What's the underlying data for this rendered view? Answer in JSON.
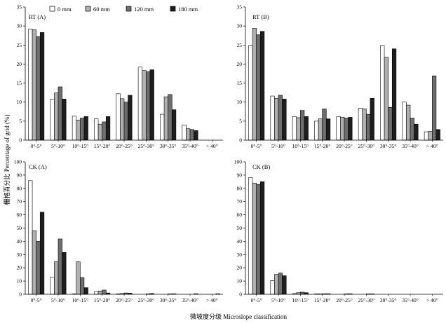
{
  "figure": {
    "ylabel": "栅格百分比 Percentage of grid (%)",
    "xlabel": "微坡度分级 Microslope classification"
  },
  "legend": [
    "0 mm",
    "60 mm",
    "120 mm",
    "180 mm"
  ],
  "colors": [
    "#ffffff",
    "#b0b0b0",
    "#6e6e6e",
    "#1e1e1e"
  ],
  "chart_data": [
    {
      "type": "bar",
      "title": "RT (A)",
      "categories": [
        "0°-5°",
        "5°-10°",
        "10°-15°",
        "15°-20°",
        "20°-25°",
        "25°-30°",
        "30°-35°",
        "35°-40°",
        "> 40°"
      ],
      "ylim": [
        0,
        35
      ],
      "yticks": [
        0,
        5,
        10,
        15,
        20,
        25,
        30,
        35
      ],
      "series": [
        {
          "name": "0 mm",
          "values": [
            29.2,
            10.8,
            6.3,
            5.6,
            12.2,
            19.2,
            6.8,
            4.0,
            0
          ]
        },
        {
          "name": "60 mm",
          "values": [
            29.0,
            12.4,
            5.3,
            4.2,
            10.9,
            18.3,
            11.4,
            3.0,
            0
          ]
        },
        {
          "name": "120 mm",
          "values": [
            27.2,
            14.0,
            5.8,
            4.8,
            10.0,
            18.0,
            12.0,
            2.8,
            0
          ]
        },
        {
          "name": "180 mm",
          "values": [
            28.3,
            10.8,
            6.2,
            6.2,
            11.8,
            18.5,
            8.0,
            2.5,
            0
          ]
        }
      ]
    },
    {
      "type": "bar",
      "title": "RT (B)",
      "categories": [
        "0°-5°",
        "5°-10°",
        "10°-15°",
        "15°-20°",
        "20°-25°",
        "25°-30°",
        "30°-35°",
        "35°-40°",
        "> 40°"
      ],
      "ylim": [
        0,
        35
      ],
      "yticks": [
        0,
        5,
        10,
        15,
        20,
        25,
        30,
        35
      ],
      "series": [
        {
          "name": "0 mm",
          "values": [
            24.9,
            11.6,
            6.2,
            5.0,
            6.2,
            8.4,
            24.9,
            10.0,
            2.2
          ]
        },
        {
          "name": "60 mm",
          "values": [
            29.4,
            11.0,
            5.9,
            5.6,
            6.0,
            8.2,
            21.8,
            9.2,
            2.3
          ]
        },
        {
          "name": "120 mm",
          "values": [
            27.7,
            11.8,
            7.8,
            8.2,
            5.8,
            6.8,
            8.6,
            5.8,
            16.9
          ]
        },
        {
          "name": "180 mm",
          "values": [
            28.6,
            10.8,
            6.2,
            5.6,
            6.0,
            11.0,
            24.0,
            4.2,
            2.8
          ]
        }
      ]
    },
    {
      "type": "bar",
      "title": "CK (A)",
      "categories": [
        "0°-5°",
        "5°-10°",
        "10°-15°",
        "15°-20°",
        "20°-25°",
        "25°-30°",
        "30°-35°",
        "35°-40°",
        "> 40°"
      ],
      "ylim": [
        0,
        100
      ],
      "yticks": [
        0,
        10,
        20,
        30,
        40,
        50,
        60,
        70,
        80,
        90,
        100
      ],
      "series": [
        {
          "name": "0 mm",
          "values": [
            85.8,
            13.0,
            0.3,
            2.0,
            0.3,
            0,
            0,
            0,
            0
          ]
        },
        {
          "name": "60 mm",
          "values": [
            48.0,
            24.5,
            24.5,
            2.5,
            0.6,
            0,
            0,
            0,
            0
          ]
        },
        {
          "name": "120 mm",
          "values": [
            40.0,
            41.8,
            12.6,
            3.2,
            1.0,
            0.3,
            0.3,
            0,
            0
          ]
        },
        {
          "name": "180 mm",
          "values": [
            62.0,
            31.6,
            5.0,
            1.0,
            0.8,
            0.6,
            0.4,
            0.4,
            0.4
          ]
        }
      ]
    },
    {
      "type": "bar",
      "title": "CK (B)",
      "categories": [
        "0°-5°",
        "5°-10°",
        "10°-15°",
        "15°-20°",
        "20°-25°",
        "25°-30°",
        "30°-35°",
        "35°-40°",
        "> 40°"
      ],
      "ylim": [
        0,
        100
      ],
      "yticks": [
        0,
        10,
        20,
        30,
        40,
        50,
        60,
        70,
        80,
        90,
        100
      ],
      "series": [
        {
          "name": "0 mm",
          "values": [
            88.0,
            10.4,
            0.6,
            0.3,
            0,
            0,
            0,
            0,
            0
          ]
        },
        {
          "name": "60 mm",
          "values": [
            84.0,
            15.0,
            1.2,
            0.3,
            0,
            0,
            0,
            0,
            0
          ]
        },
        {
          "name": "120 mm",
          "values": [
            83.0,
            16.0,
            1.6,
            0.4,
            0.3,
            0.3,
            0,
            0,
            0
          ]
        },
        {
          "name": "180 mm",
          "values": [
            85.0,
            14.0,
            1.2,
            0.4,
            0.4,
            0.3,
            0,
            0,
            0
          ]
        }
      ]
    }
  ]
}
